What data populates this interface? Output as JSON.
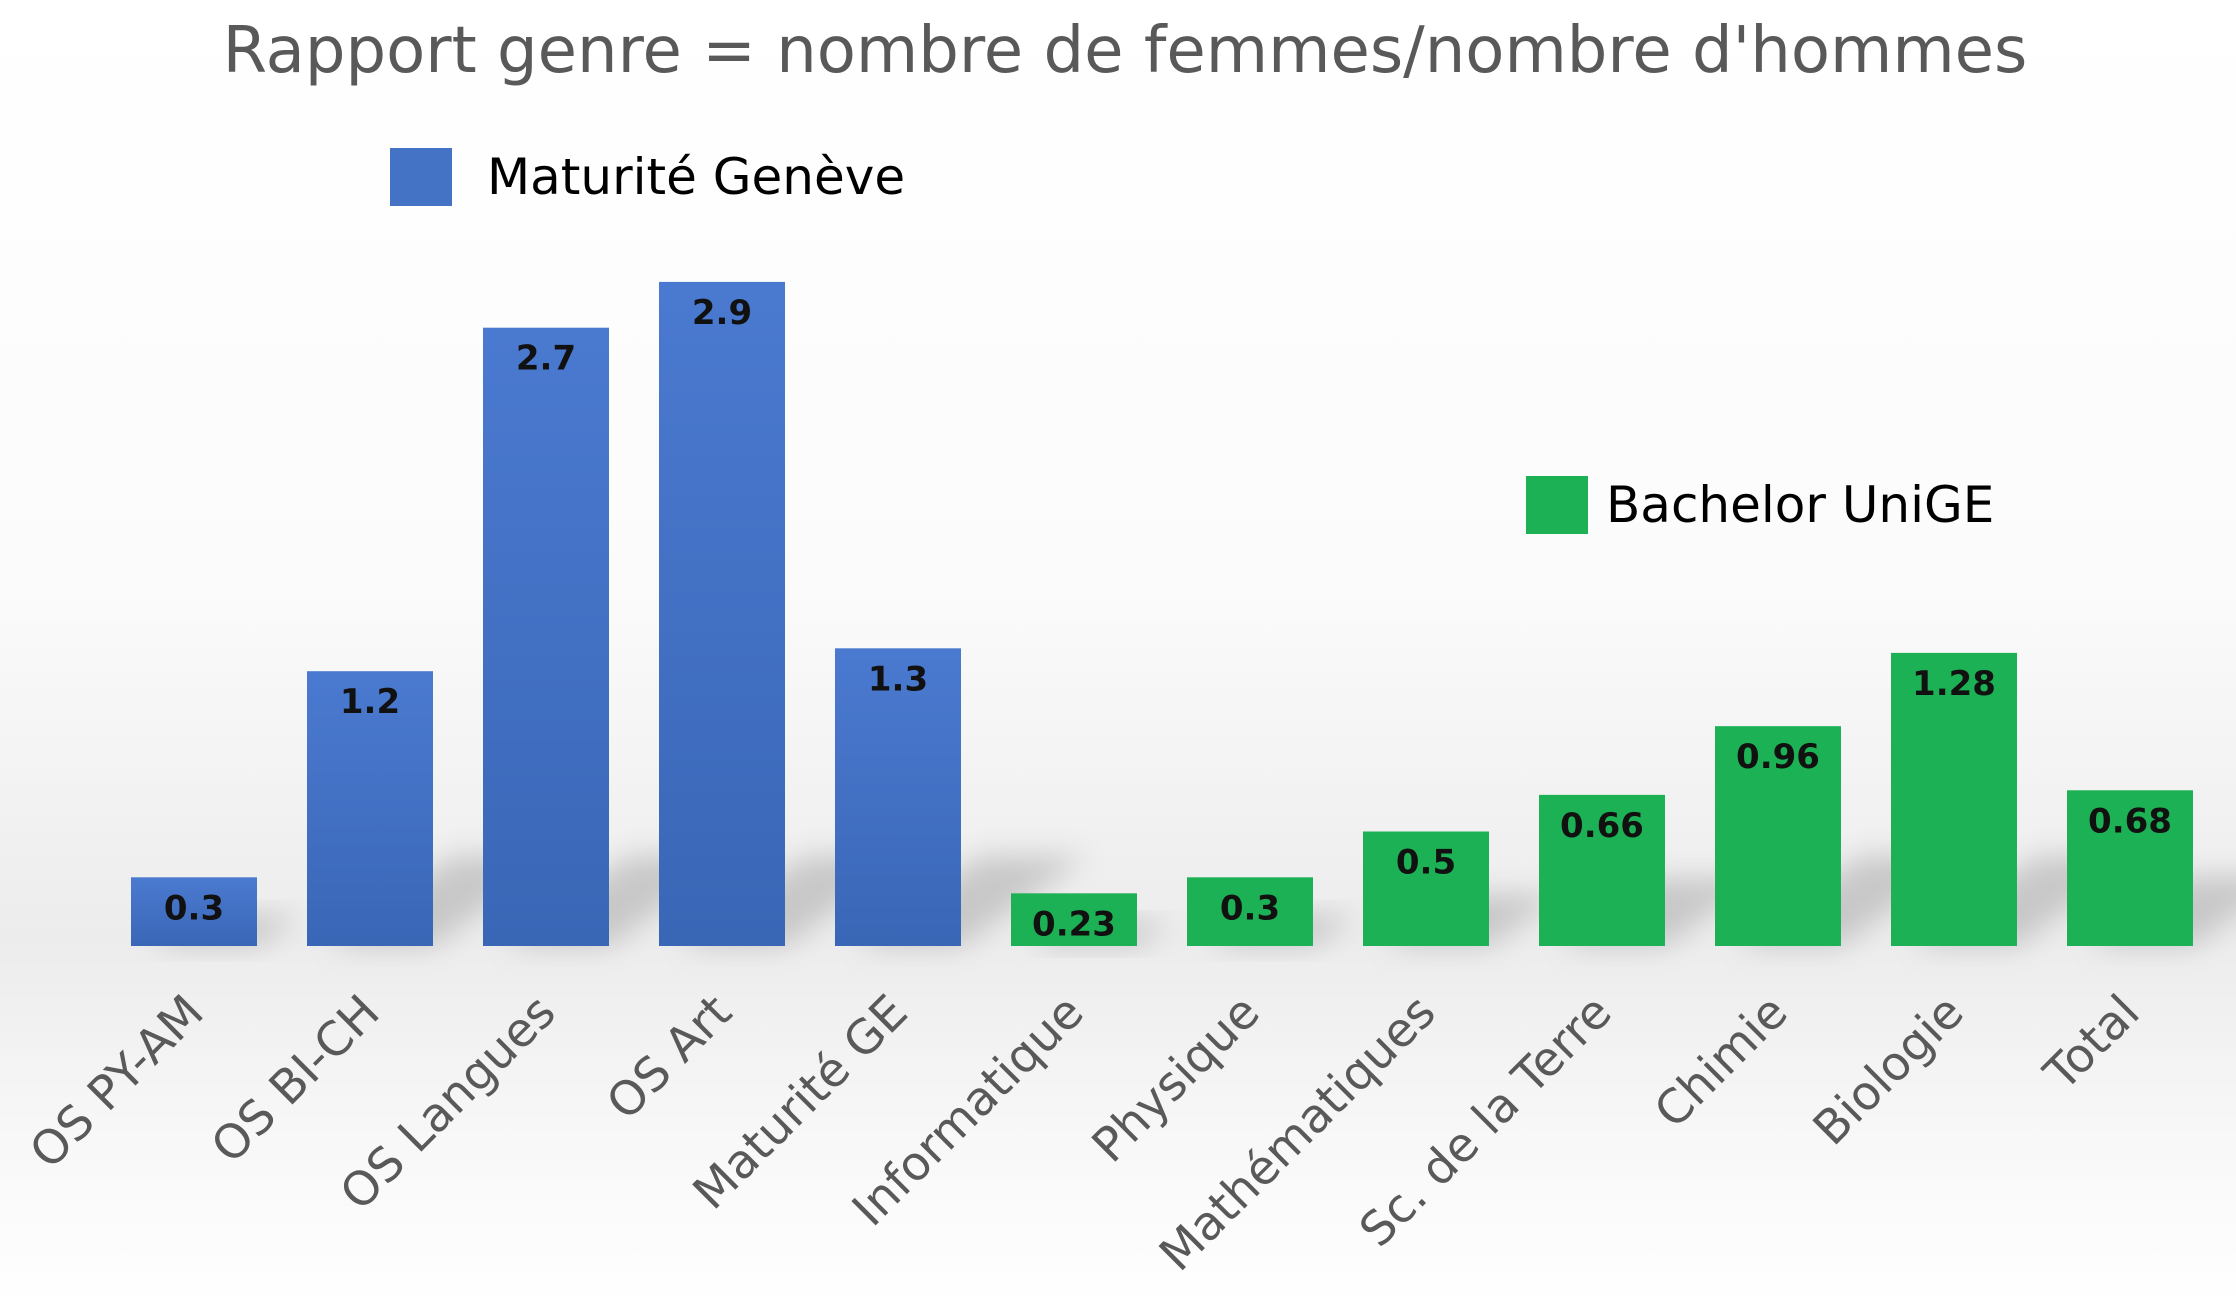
{
  "chart_data": {
    "type": "bar",
    "title": "Rapport genre = nombre de femmes/nombre d'hommes",
    "xlabel": "",
    "ylabel": "",
    "ylim": [
      0,
      3.2
    ],
    "grid": false,
    "legend_placement": "inside",
    "categories": [
      "OS PY-AM",
      "OS BI-CH",
      "OS Langues",
      "OS Art",
      "Maturité GE",
      "Informatique",
      "Physique",
      "Mathématiques",
      "Sc. de la Terre",
      "Chimie",
      "Biologie",
      "Total"
    ],
    "series": [
      {
        "name": "Maturité Genève",
        "color": "#4472c4",
        "values": [
          0.3,
          1.2,
          2.7,
          2.9,
          1.3,
          null,
          null,
          null,
          null,
          null,
          null,
          null
        ]
      },
      {
        "name": "Bachelor UniGE",
        "color": "#1db155",
        "values": [
          null,
          null,
          null,
          null,
          null,
          0.23,
          0.3,
          0.5,
          0.66,
          0.96,
          1.28,
          0.68
        ]
      }
    ],
    "data_labels": [
      "0.3",
      "1.2",
      "2.7",
      "2.9",
      "1.3",
      "0.23",
      "0.3",
      "0.5",
      "0.66",
      "0.96",
      "1.28",
      "0.68"
    ]
  }
}
